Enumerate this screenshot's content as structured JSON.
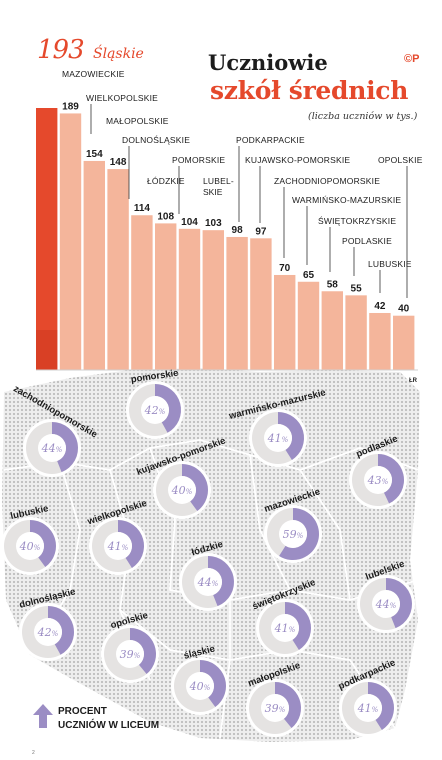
{
  "title_line1": "Uczniowie",
  "title_line2": "szkół średnich",
  "subtitle": "(liczba uczniów w tys.)",
  "logo": "©P",
  "author": "ŁR",
  "page_marker": "2",
  "legend": {
    "line1": "PROCENT",
    "line2": "UCZNIÓW W LICEUM"
  },
  "colors": {
    "top_bar": "#e5492c",
    "top_bar_dark": "#c4301a",
    "bar": "#f4b59b",
    "donut_fill": "#9b8dc4",
    "donut_rest": "#e5e3e2",
    "map_fill": "#dcdcdc",
    "text": "#1c1c1c",
    "accent": "#e5492c"
  },
  "chart_data": [
    {
      "type": "bar",
      "title": "Uczniowie szkół średnich",
      "subtitle": "(liczba uczniów w tys.)",
      "categories": [
        "Śląskie",
        "MAZOWIECKIE",
        "WIELKOPOLSKIE",
        "MAŁOPOLSKIE",
        "DOLNOŚLĄSKIE",
        "ŁÓDZKIE",
        "POMORSKIE",
        "LUBELSKIE",
        "PODKARPACKIE",
        "KUJAWSKO-POMORSKIE",
        "ZACHODNIOPOMORSKIE",
        "WARMIŃSKO-MAZURSKIE",
        "ŚWIĘTOKRZYSKIE",
        "PODLASKIE",
        "LUBUSKIE",
        "OPOLSKIE"
      ],
      "values": [
        193,
        189,
        154,
        148,
        114,
        108,
        104,
        103,
        98,
        97,
        70,
        65,
        58,
        55,
        42,
        40
      ],
      "value_labels": [
        "193",
        "189",
        "154",
        "148",
        "114",
        "108",
        "104",
        "103",
        "98",
        "97",
        "70",
        "65",
        "58",
        "55",
        "42",
        "40"
      ],
      "highlight": "Śląskie"
    },
    {
      "type": "pie",
      "title": "PROCENT UCZNIÓW W LICEUM",
      "unit": "%",
      "regions": [
        {
          "name": "pomorskie",
          "value": 42
        },
        {
          "name": "zachodniopomorskie",
          "value": 44
        },
        {
          "name": "warmińsko-mazurskie",
          "value": 41
        },
        {
          "name": "podlaskie",
          "value": 43
        },
        {
          "name": "kujawsko-pomorskie",
          "value": 40
        },
        {
          "name": "lubuskie",
          "value": 40
        },
        {
          "name": "wielkopolskie",
          "value": 41
        },
        {
          "name": "mazowieckie",
          "value": 59
        },
        {
          "name": "łódzkie",
          "value": 44
        },
        {
          "name": "lubelskie",
          "value": 44
        },
        {
          "name": "dolnośląskie",
          "value": 42
        },
        {
          "name": "opolskie",
          "value": 39
        },
        {
          "name": "świętokrzyskie",
          "value": 41
        },
        {
          "name": "śląskie",
          "value": 40
        },
        {
          "name": "małopolskie",
          "value": 39
        },
        {
          "name": "podkarpackie",
          "value": 41
        }
      ]
    }
  ]
}
